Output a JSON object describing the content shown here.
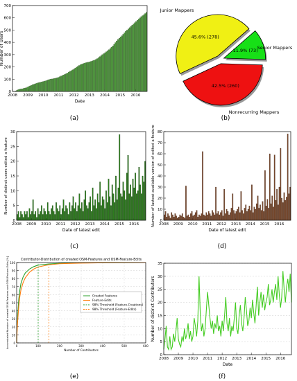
{
  "captions": {
    "a": "(a)",
    "b": "(b)",
    "c": "(c)",
    "d": "(d)",
    "e": "(e)",
    "f": "(f)"
  },
  "chart_data": [
    {
      "id": "a",
      "type": "bar",
      "xlabel": "Date",
      "ylabel": "Number of Users",
      "ylim": [
        0,
        700
      ],
      "yticks": [
        0,
        100,
        200,
        300,
        400,
        500,
        600,
        700
      ],
      "xlim": [
        2008.0,
        2016.75
      ],
      "xticks": [
        "2008",
        "2009",
        "2010",
        "2011",
        "2012",
        "2013",
        "2014",
        "2015",
        "2016"
      ],
      "x_year_start": 2008,
      "x_year_step": 1,
      "bar_count": 104,
      "bar_color": "#4f9a3d",
      "bar_edge": "#1d3d12",
      "values": [
        0,
        0,
        5,
        10,
        15,
        18,
        20,
        22,
        25,
        28,
        30,
        35,
        40,
        45,
        50,
        55,
        58,
        62,
        66,
        70,
        72,
        75,
        78,
        80,
        83,
        86,
        90,
        95,
        98,
        100,
        102,
        104,
        106,
        108,
        112,
        115,
        120,
        125,
        130,
        135,
        140,
        145,
        150,
        158,
        165,
        170,
        176,
        182,
        190,
        198,
        205,
        212,
        218,
        222,
        226,
        230,
        234,
        236,
        238,
        241,
        244,
        248,
        252,
        256,
        262,
        268,
        276,
        284,
        292,
        300,
        308,
        316,
        324,
        332,
        340,
        350,
        360,
        372,
        384,
        398,
        412,
        424,
        434,
        444,
        454,
        466,
        478,
        490,
        500,
        510,
        520,
        530,
        540,
        550,
        560,
        570,
        580,
        590,
        600,
        610,
        618,
        626,
        635,
        645
      ]
    },
    {
      "id": "b",
      "type": "pie",
      "slices": [
        {
          "name": "Junior Mappers",
          "label": "45.6%  (278)",
          "value": 278,
          "percent": 45.6,
          "color": "#f0f014",
          "exploded": true
        },
        {
          "name": "Senior Mappers",
          "label": "11.9%  (73)",
          "value": 73,
          "percent": 11.9,
          "color": "#17e017",
          "exploded": true
        },
        {
          "name": "Nonrecurring Mappers",
          "label": "42.5%  (260)",
          "value": 260,
          "percent": 42.5,
          "color": "#ee1111",
          "exploded": true
        }
      ]
    },
    {
      "id": "c",
      "type": "bar",
      "xlabel": "Date of latest edit",
      "ylabel": "Number of distinct users edited a feature",
      "ylim": [
        0,
        30
      ],
      "yticks": [
        0,
        5,
        10,
        15,
        20,
        25,
        30
      ],
      "xlim": [
        2008.0,
        2016.8
      ],
      "xticks": [
        "2008",
        "2009",
        "2010",
        "2011",
        "2012",
        "2013",
        "2014",
        "2015",
        "2016"
      ],
      "x_year_start": 2008,
      "x_year_step": 1,
      "bar_count": 106,
      "bar_color": "#2e7d1e",
      "bar_edge": "#0d2e08",
      "values": [
        2,
        3,
        1,
        3,
        2,
        1,
        3,
        2,
        3,
        1,
        4,
        2,
        3,
        7,
        2,
        3,
        1,
        4,
        2,
        3,
        5,
        2,
        4,
        3,
        2,
        6,
        3,
        2,
        4,
        5,
        3,
        2,
        6,
        4,
        3,
        5,
        2,
        4,
        7,
        3,
        5,
        4,
        2,
        6,
        3,
        5,
        8,
        4,
        6,
        3,
        5,
        9,
        4,
        6,
        3,
        7,
        10,
        5,
        4,
        6,
        8,
        3,
        11,
        5,
        7,
        4,
        9,
        6,
        13,
        5,
        8,
        7,
        4,
        10,
        6,
        14,
        8,
        5,
        12,
        9,
        6,
        15,
        7,
        11,
        29,
        9,
        8,
        13,
        10,
        7,
        16,
        22,
        9,
        12,
        8,
        14,
        11,
        16,
        9,
        10,
        18,
        12,
        9,
        15,
        13,
        20
      ]
    },
    {
      "id": "d",
      "type": "bar",
      "xlabel": "Date of latest edit",
      "ylabel": "Number of lastest available version of edited a feature",
      "ylim": [
        0,
        80
      ],
      "yticks": [
        0,
        10,
        20,
        30,
        40,
        50,
        60,
        70,
        80
      ],
      "xlim": [
        2008.0,
        2016.8
      ],
      "xticks": [
        "2008",
        "2009",
        "2010",
        "2011",
        "2012",
        "2013",
        "2014",
        "2015",
        "2016"
      ],
      "x_year_start": 2008,
      "x_year_step": 1,
      "bar_count": 106,
      "bar_color": "#7a4a2e",
      "bar_edge": "#3a1e10",
      "values": [
        5,
        8,
        3,
        6,
        4,
        2,
        7,
        5,
        3,
        6,
        4,
        2,
        3,
        5,
        4,
        6,
        3,
        2,
        31,
        4,
        5,
        3,
        6,
        8,
        4,
        5,
        7,
        9,
        3,
        5,
        4,
        6,
        62,
        5,
        4,
        7,
        5,
        8,
        6,
        4,
        9,
        7,
        5,
        30,
        6,
        8,
        5,
        7,
        9,
        4,
        28,
        6,
        10,
        8,
        5,
        7,
        11,
        24,
        9,
        6,
        8,
        10,
        12,
        7,
        26,
        9,
        6,
        11,
        14,
        8,
        10,
        13,
        9,
        32,
        7,
        12,
        10,
        15,
        22,
        11,
        14,
        9,
        17,
        8,
        45,
        13,
        19,
        11,
        60,
        15,
        22,
        12,
        59,
        18,
        28,
        14,
        30,
        65,
        20,
        16,
        25,
        18,
        21,
        78,
        24,
        30
      ]
    },
    {
      "id": "e",
      "type": "line",
      "title": "Contributor-Distribution of created OSM-Features and OSM-Feature-Edits",
      "xlabel": "Number of Contributors",
      "ylabel": "Accumulated Number of created OSM-Features and OSM-Feature-Edits [%]",
      "xlim": [
        0,
        600
      ],
      "ylim": [
        0,
        100
      ],
      "xticks": [
        0,
        100,
        200,
        300,
        400,
        500,
        600
      ],
      "yticks": [
        0,
        10,
        20,
        30,
        40,
        50,
        60,
        70,
        80,
        90,
        100
      ],
      "legend_position": "center-right",
      "series": [
        {
          "name": "Created Features",
          "color": "#2ca02c",
          "dashed": false,
          "x": [
            0,
            2,
            5,
            10,
            15,
            20,
            30,
            40,
            60,
            80,
            100,
            150,
            200,
            300,
            400,
            500,
            600
          ],
          "y": [
            0,
            18,
            35,
            55,
            66,
            74,
            82,
            87,
            92,
            95,
            96.8,
            98.2,
            99,
            99.6,
            99.8,
            99.9,
            100
          ]
        },
        {
          "name": "Feature-Edits",
          "color": "#ff7f0e",
          "dashed": false,
          "x": [
            0,
            2,
            5,
            10,
            15,
            20,
            30,
            40,
            60,
            80,
            100,
            150,
            200,
            300,
            400,
            500,
            600
          ],
          "y": [
            0,
            14,
            28,
            46,
            58,
            66,
            75,
            81,
            88,
            92,
            94.5,
            97.2,
            98.5,
            99.3,
            99.7,
            99.9,
            100
          ]
        },
        {
          "name": "98% Threshold (Feature-Creations)",
          "color": "#2ca02c",
          "dashed": true,
          "x": [
            100,
            100
          ],
          "y": [
            0,
            98
          ]
        },
        {
          "name": "98% Threshold (Feature-Edits)",
          "color": "#ff7f0e",
          "dashed": true,
          "x": [
            150,
            150
          ],
          "y": [
            0,
            98
          ]
        }
      ]
    },
    {
      "id": "f",
      "type": "line",
      "xlabel": "Date",
      "ylabel": "Number of distinct Contributors",
      "ylim": [
        0,
        35
      ],
      "yticks": [
        0,
        5,
        10,
        15,
        20,
        25,
        30,
        35
      ],
      "xlim": [
        2008.0,
        2016.75
      ],
      "xticks": [
        "2008",
        "2009",
        "2010",
        "2011",
        "2012",
        "2013",
        "2014",
        "2015",
        "2016"
      ],
      "x_year_start": 2008,
      "x_year_step": 1,
      "line_color": "#44cc22",
      "values": [
        2,
        6,
        11,
        3,
        2,
        7,
        2,
        3,
        8,
        5,
        9,
        14,
        6,
        4,
        3,
        7,
        5,
        10,
        6,
        8,
        12,
        6,
        9,
        5,
        7,
        14,
        11,
        7,
        13,
        30,
        16,
        9,
        12,
        7,
        10,
        17,
        24,
        19,
        14,
        10,
        13,
        8,
        12,
        10,
        15,
        9,
        11,
        7,
        13,
        9,
        15,
        22,
        12,
        9,
        14,
        7,
        11,
        9,
        14,
        20,
        10,
        8,
        15,
        19,
        12,
        9,
        14,
        22,
        17,
        11,
        13,
        18,
        14,
        21,
        16,
        12,
        19,
        26,
        15,
        20,
        24,
        18,
        23,
        17,
        20,
        22,
        27,
        19,
        21,
        25,
        20,
        24,
        27,
        21,
        30,
        23,
        18,
        22,
        32,
        25,
        20,
        26,
        29,
        24,
        31,
        20
      ]
    }
  ]
}
